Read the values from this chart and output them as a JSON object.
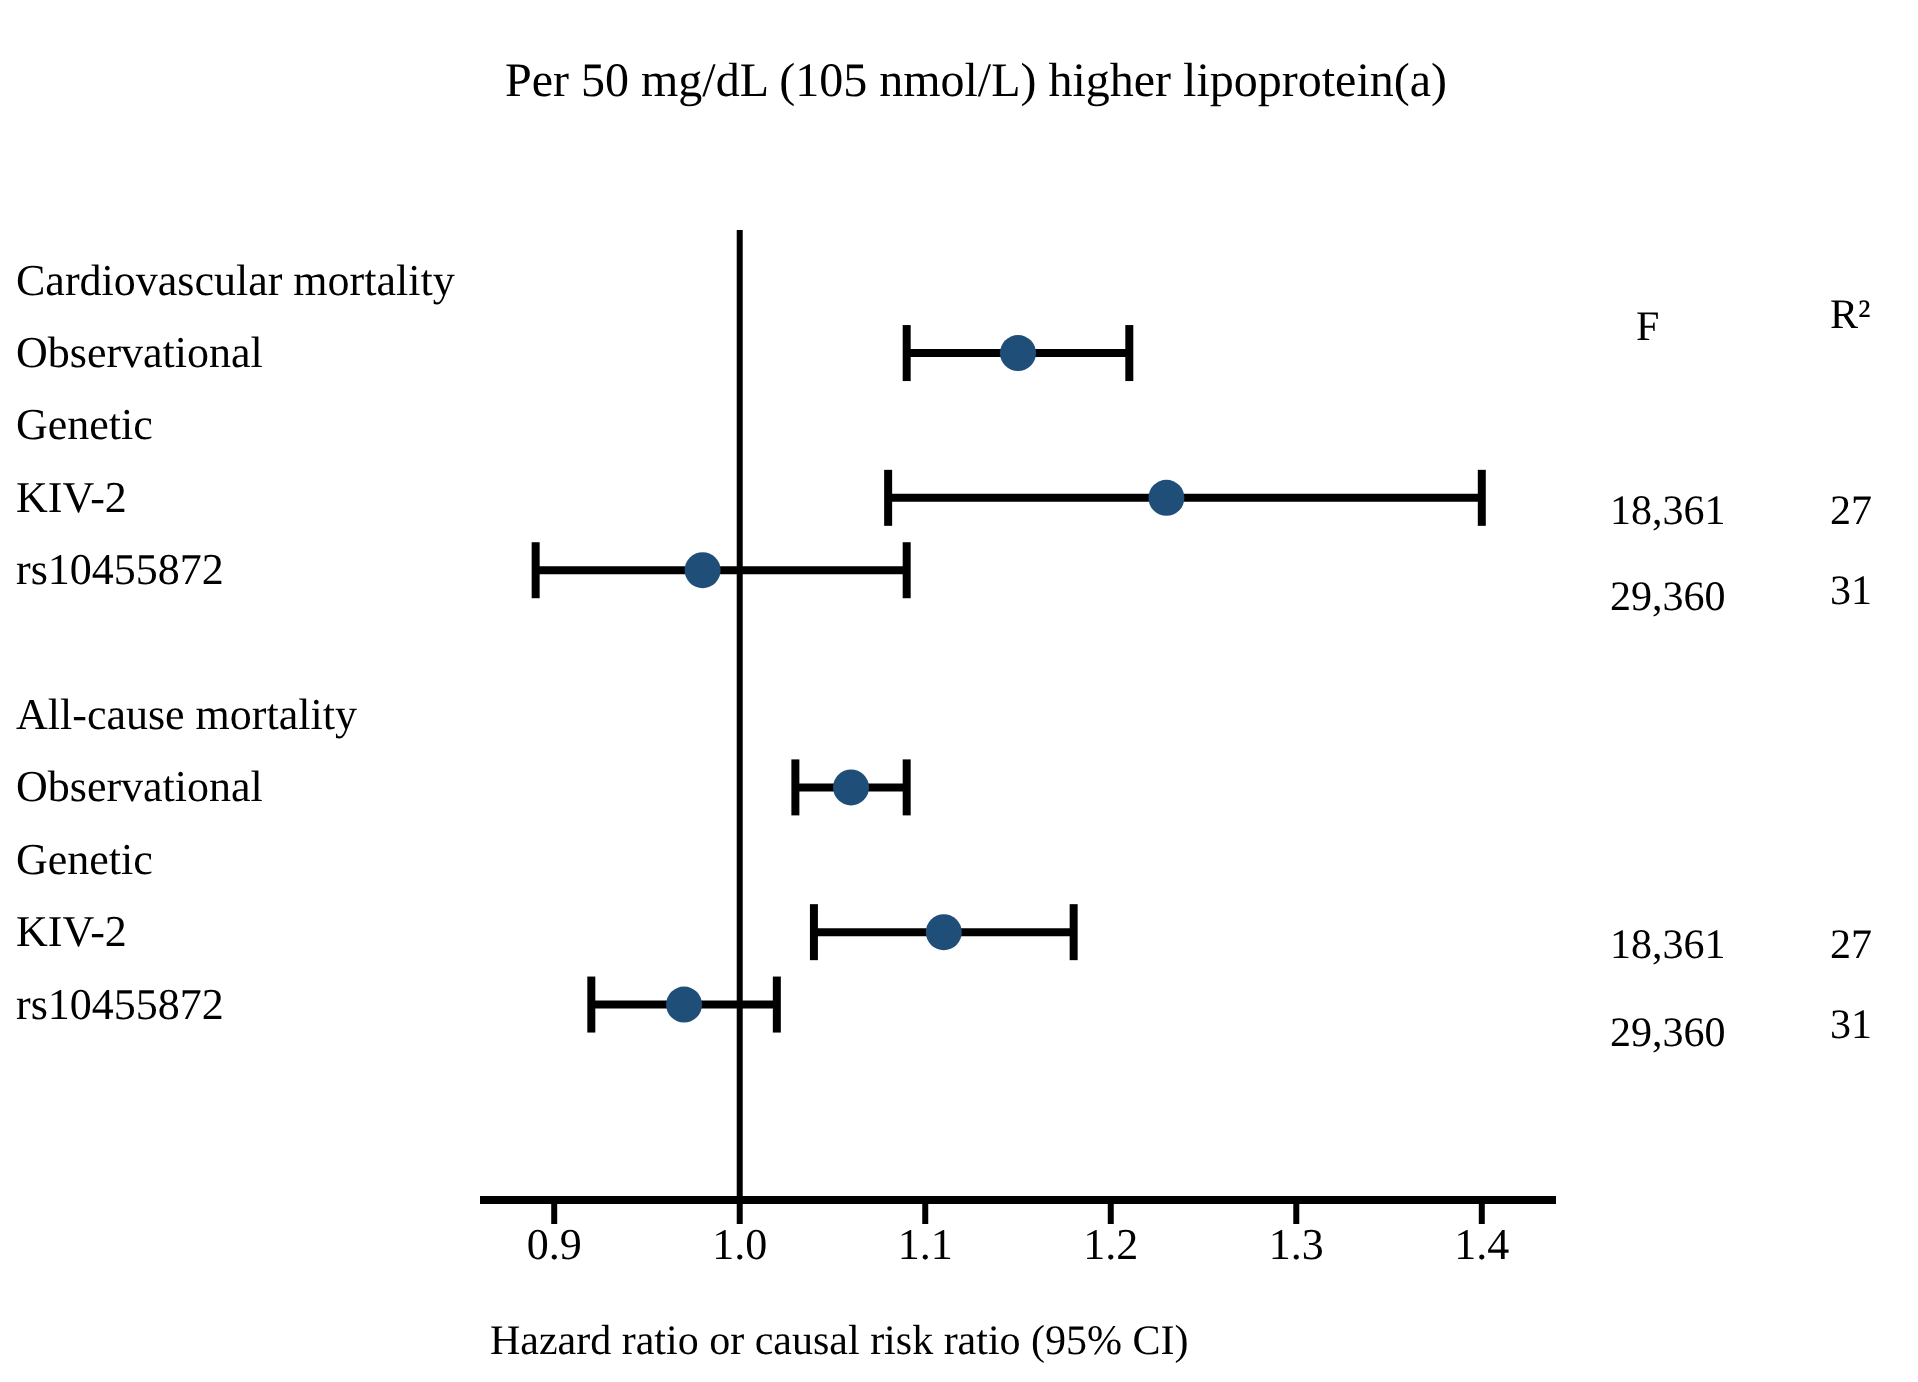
{
  "chart_data": {
    "type": "scatter",
    "orientation": "horizontal",
    "title": "Per 50 mg/dL (105 nmol/L) higher lipoprotein(a)",
    "xlabel": "Hazard ratio or causal risk ratio (95% CI)",
    "categories": [
      "Cardiovascular mortality",
      "Observational",
      "Genetic",
      "KIV-2",
      "rs10455872",
      null,
      "All-cause mortality",
      "Observational",
      "Genetic",
      "KIV-2",
      "rs10455872"
    ],
    "values": [
      null,
      1.15,
      null,
      1.23,
      0.98,
      null,
      null,
      1.06,
      null,
      1.11,
      0.97
    ],
    "errors": [
      null,
      [
        1.09,
        1.21
      ],
      null,
      [
        1.08,
        1.4
      ],
      [
        0.89,
        1.09
      ],
      null,
      null,
      [
        1.03,
        1.09
      ],
      null,
      [
        1.04,
        1.18
      ],
      [
        0.92,
        1.02
      ]
    ],
    "color": "#1f4e79",
    "marker": "circle",
    "xlim": [
      0.86,
      1.44
    ],
    "xticks": [
      0.9,
      {
        "value": 1,
        "label": "1.0"
      },
      1.1,
      1.2,
      1.3,
      1.4
    ],
    "ref_lines": [
      {
        "axis": "x",
        "value": 1
      }
    ],
    "annotations": [
      "F",
      "R²",
      "18,361",
      "27",
      "29,360",
      "31",
      "18,361",
      "27",
      "29,360",
      "31"
    ]
  }
}
